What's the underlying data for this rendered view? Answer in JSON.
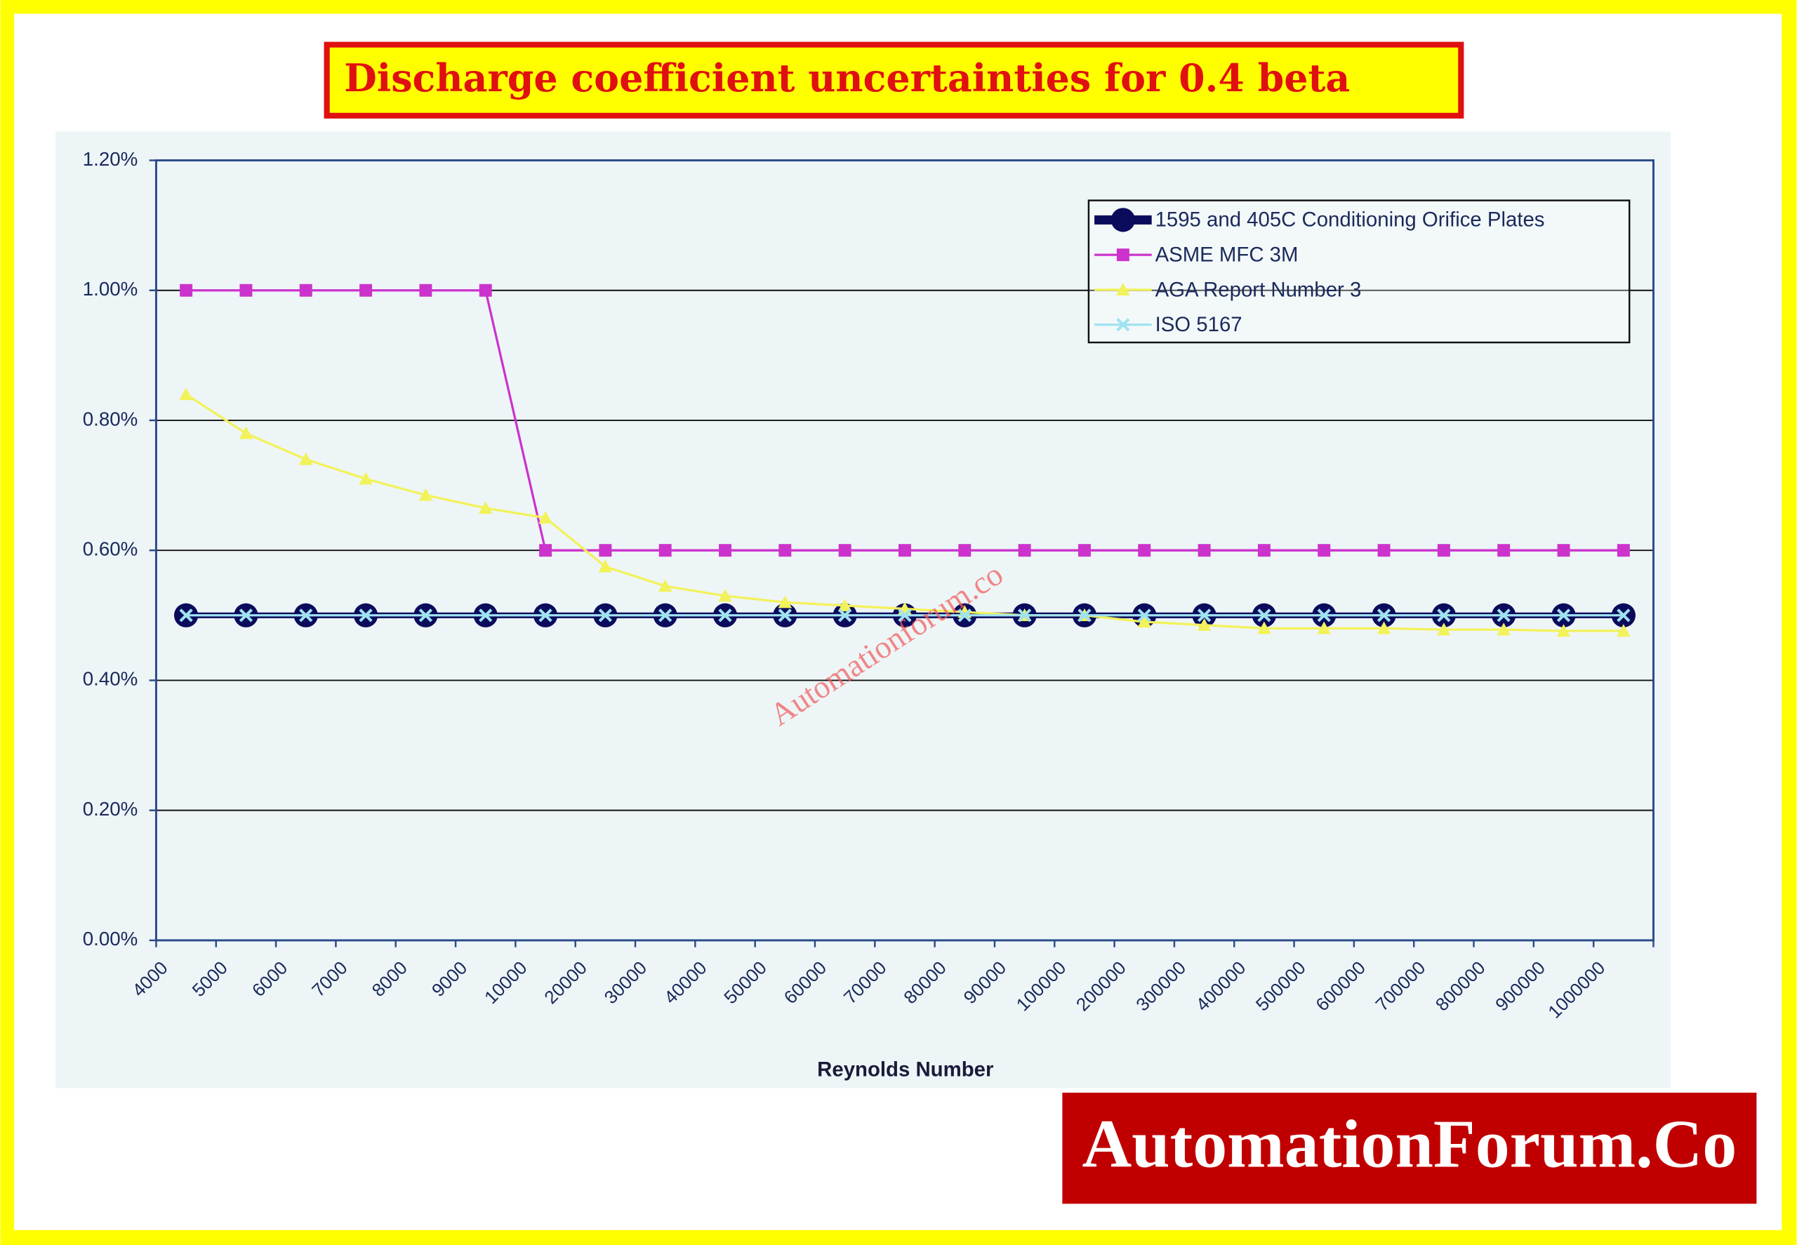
{
  "chart_data": {
    "type": "line",
    "title": "Discharge coefficient uncertainties for 0.4 beta",
    "x_label": "Reynolds Number",
    "categories": [
      "4000",
      "5000",
      "6000",
      "7000",
      "8000",
      "9000",
      "10000",
      "20000",
      "30000",
      "40000",
      "50000",
      "60000",
      "70000",
      "80000",
      "90000",
      "100000",
      "200000",
      "300000",
      "400000",
      "500000",
      "600000",
      "700000",
      "800000",
      "900000",
      "1000000"
    ],
    "series": [
      {
        "name": "1595 and 405C Conditioning Orifice Plates",
        "color": "#0b0b5c",
        "marker": "circle",
        "values": [
          0.5,
          0.5,
          0.5,
          0.5,
          0.5,
          0.5,
          0.5,
          0.5,
          0.5,
          0.5,
          0.5,
          0.5,
          0.5,
          0.5,
          0.5,
          0.5,
          0.5,
          0.5,
          0.5,
          0.5,
          0.5,
          0.5,
          0.5,
          0.5,
          0.5
        ]
      },
      {
        "name": "ASME MFC 3M",
        "color": "#cc33cc",
        "marker": "square",
        "values": [
          1.0,
          1.0,
          1.0,
          1.0,
          1.0,
          1.0,
          0.6,
          0.6,
          0.6,
          0.6,
          0.6,
          0.6,
          0.6,
          0.6,
          0.6,
          0.6,
          0.6,
          0.6,
          0.6,
          0.6,
          0.6,
          0.6,
          0.6,
          0.6,
          0.6
        ]
      },
      {
        "name": "AGA Report Number 3",
        "color": "#f2f25a",
        "marker": "triangle",
        "values": [
          0.84,
          0.78,
          0.74,
          0.71,
          0.685,
          0.665,
          0.65,
          0.575,
          0.545,
          0.53,
          0.52,
          0.515,
          0.51,
          0.505,
          0.5,
          0.5,
          0.49,
          0.485,
          0.48,
          0.48,
          0.48,
          0.478,
          0.478,
          0.476,
          0.476
        ]
      },
      {
        "name": "ISO 5167",
        "color": "#9fe3f0",
        "marker": "x",
        "values": [
          0.5,
          0.5,
          0.5,
          0.5,
          0.5,
          0.5,
          0.5,
          0.5,
          0.5,
          0.5,
          0.5,
          0.5,
          0.5,
          0.5,
          0.5,
          0.5,
          0.5,
          0.5,
          0.5,
          0.5,
          0.5,
          0.5,
          0.5,
          0.5,
          0.5
        ]
      }
    ],
    "ylim": [
      0,
      1.2
    ],
    "yticks": [
      {
        "value": 0,
        "label": "0.00%"
      },
      {
        "value": 0.2,
        "label": "0.20%"
      },
      {
        "value": 0.4,
        "label": "0.40%"
      },
      {
        "value": 0.6,
        "label": "0.60%"
      },
      {
        "value": 0.8,
        "label": "0.80%"
      },
      {
        "value": 1.0,
        "label": "1.00%"
      },
      {
        "value": 1.2,
        "label": "1.20%"
      }
    ],
    "grid": true,
    "legend": "upper right"
  },
  "watermark": "Automationforum.co",
  "logo": "AutomationForum.Co"
}
